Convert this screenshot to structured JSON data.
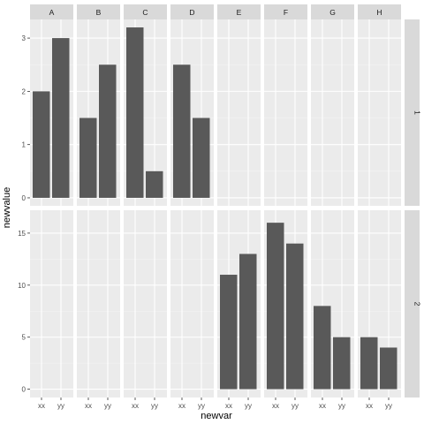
{
  "chart_data": {
    "type": "bar",
    "xlabel": "newvar",
    "ylabel": "newvalue",
    "columns": [
      "A",
      "B",
      "C",
      "D",
      "E",
      "F",
      "G",
      "H"
    ],
    "rows": [
      "1",
      "2"
    ],
    "categories": [
      "xx",
      "yy"
    ],
    "row_scales": [
      {
        "row": "1",
        "ylim": [
          -0.15,
          3.35
        ],
        "yticks": [
          0,
          1,
          2,
          3
        ]
      },
      {
        "row": "2",
        "ylim": [
          -0.8,
          17.2
        ],
        "yticks": [
          0,
          5,
          10,
          15
        ]
      }
    ],
    "panels": [
      {
        "row": "1",
        "col": "A",
        "values": [
          2,
          3
        ]
      },
      {
        "row": "1",
        "col": "B",
        "values": [
          1.5,
          2.5
        ]
      },
      {
        "row": "1",
        "col": "C",
        "values": [
          3.2,
          0.5
        ]
      },
      {
        "row": "1",
        "col": "D",
        "values": [
          2.5,
          1.5
        ]
      },
      {
        "row": "2",
        "col": "E",
        "values": [
          11,
          13
        ]
      },
      {
        "row": "2",
        "col": "F",
        "values": [
          16,
          14
        ]
      },
      {
        "row": "2",
        "col": "G",
        "values": [
          8,
          5
        ]
      },
      {
        "row": "2",
        "col": "H",
        "values": [
          5,
          4
        ]
      }
    ],
    "grid": true,
    "colors": {
      "panel_background": "#ebebeb",
      "grid_major": "#ffffff",
      "grid_minor": "#f4f4f4",
      "bar": "#595959",
      "strip_background": "#d9d9d9",
      "text": "#4d4d4d"
    }
  }
}
